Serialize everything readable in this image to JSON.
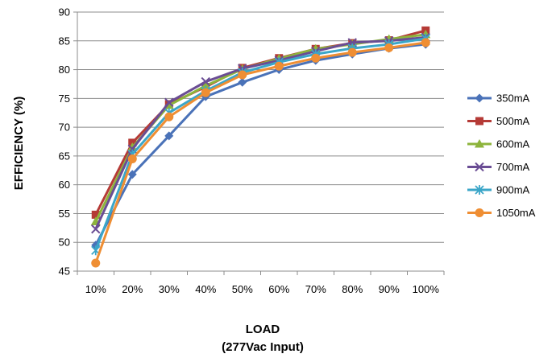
{
  "chart_data": {
    "type": "line",
    "ylabel": "EFFICIENCY (%)",
    "xlabel_lines": [
      "LOAD",
      "(277Vac Input)"
    ],
    "categories": [
      "10%",
      "20%",
      "30%",
      "40%",
      "50%",
      "60%",
      "70%",
      "80%",
      "90%",
      "100%"
    ],
    "ylim": [
      45,
      90
    ],
    "yticks": [
      45,
      50,
      55,
      60,
      65,
      70,
      75,
      80,
      85,
      90
    ],
    "grid": "horizontal",
    "legend_position": "right",
    "series": [
      {
        "name": "350mA",
        "color": "#4a72b8",
        "marker": "diamond",
        "values": [
          49.5,
          61.8,
          68.5,
          75.3,
          77.8,
          80.0,
          81.6,
          82.7,
          83.7,
          84.4
        ]
      },
      {
        "name": "500mA",
        "color": "#b53a36",
        "marker": "square",
        "values": [
          54.8,
          67.3,
          74.0,
          77.0,
          80.3,
          82.0,
          83.6,
          84.6,
          85.1,
          86.8
        ]
      },
      {
        "name": "600mA",
        "color": "#8db43c",
        "marker": "triangle",
        "values": [
          53.6,
          66.5,
          73.8,
          77.2,
          80.1,
          81.9,
          83.6,
          84.4,
          85.3,
          86.1
        ]
      },
      {
        "name": "700mA",
        "color": "#6a4d94",
        "marker": "x",
        "values": [
          52.3,
          66.2,
          74.3,
          77.9,
          80.2,
          81.6,
          83.2,
          84.7,
          85.0,
          85.6
        ]
      },
      {
        "name": "900mA",
        "color": "#3ba6c8",
        "marker": "star",
        "values": [
          48.6,
          65.3,
          72.5,
          76.3,
          79.5,
          81.3,
          82.7,
          83.7,
          84.4,
          85.4
        ]
      },
      {
        "name": "1050mA",
        "color": "#ef8e33",
        "marker": "circle",
        "values": [
          46.4,
          64.5,
          71.8,
          76.0,
          79.1,
          80.6,
          82.0,
          83.0,
          83.8,
          84.7
        ]
      }
    ]
  }
}
